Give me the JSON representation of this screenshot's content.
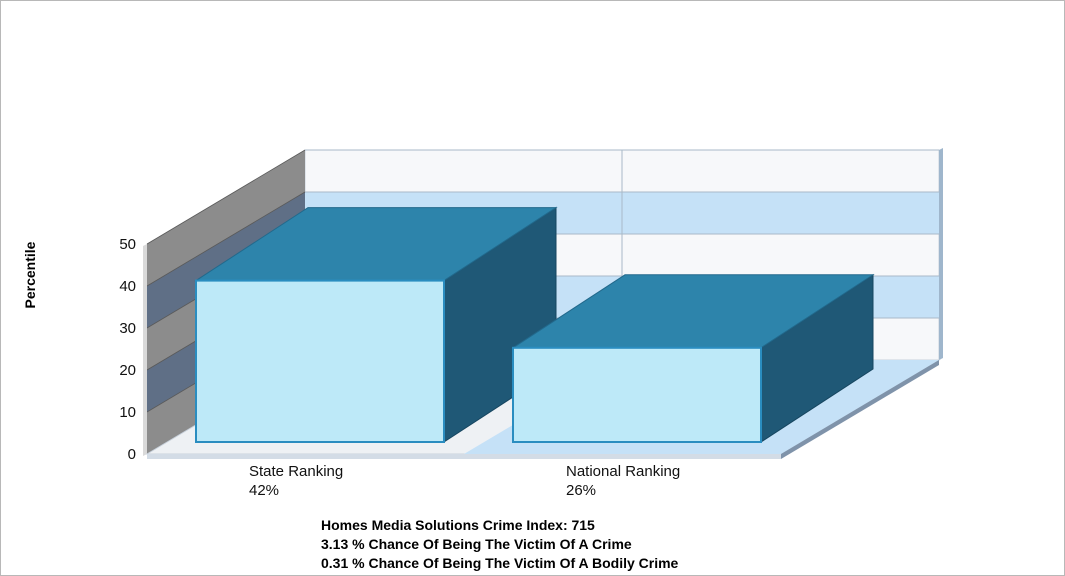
{
  "chart_data": {
    "type": "bar",
    "categories": [
      "State Ranking",
      "National Ranking"
    ],
    "value_labels": [
      "42%",
      "26%"
    ],
    "values": [
      42,
      26
    ],
    "ylabel": "Percentile",
    "xlabel": "",
    "ylim": [
      0,
      50
    ],
    "yticks": [
      0,
      10,
      20,
      30,
      40,
      50
    ],
    "three_d": true,
    "grid": true,
    "legend": "none",
    "colors": {
      "bar_front": "#bde9f8",
      "bar_top": "#2d84ab",
      "bar_side": "#1f5876",
      "bar_outline": "#2a8dc0",
      "wall_band": "#c5e1f7",
      "left_wall": "#8c8c8c",
      "left_wall_band": "#5f6f86"
    }
  },
  "footer": {
    "lines": [
      "Homes Media Solutions Crime Index: 715",
      "3.13 % Chance Of Being The Victim Of A Crime",
      "0.31 % Chance Of Being The Victim Of A Bodily Crime"
    ]
  }
}
